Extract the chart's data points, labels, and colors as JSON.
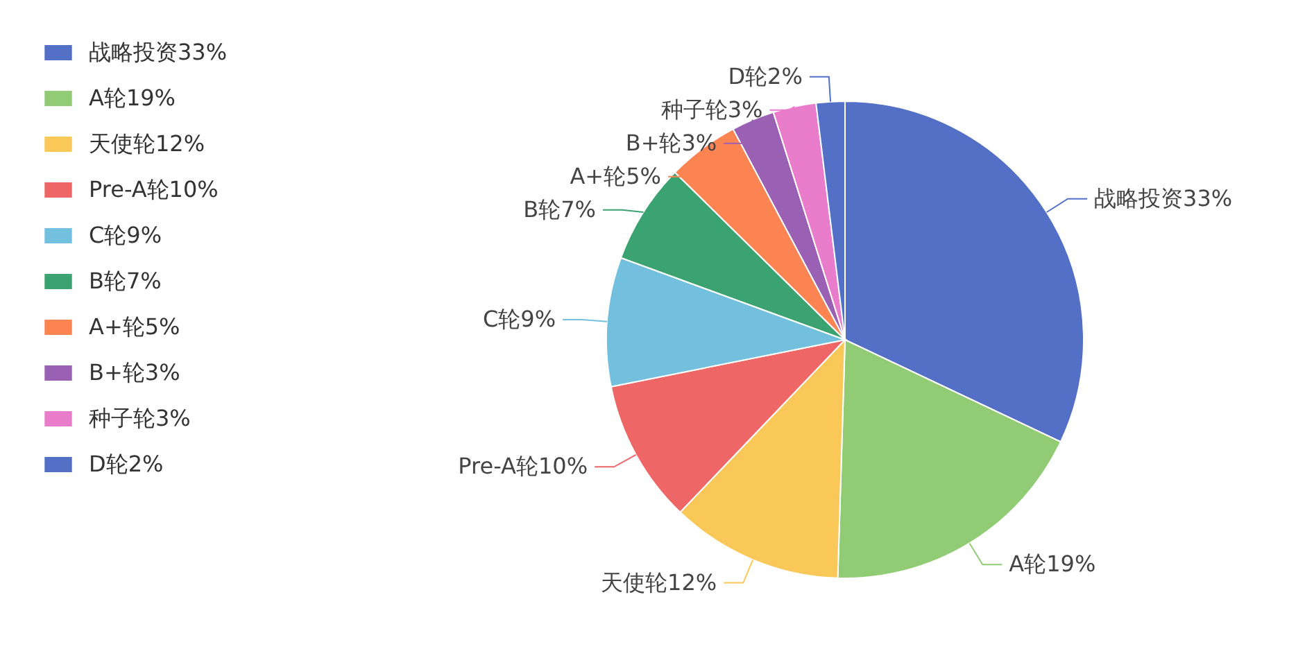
{
  "chart_data": {
    "type": "pie",
    "categories": [
      "战略投资33%",
      "A轮19%",
      "天使轮12%",
      "Pre-A轮10%",
      "C轮9%",
      "B轮7%",
      "A+轮5%",
      "B+轮3%",
      "种子轮3%",
      "D轮2%"
    ],
    "values": [
      33,
      19,
      12,
      10,
      9,
      7,
      5,
      3,
      3,
      2
    ],
    "colors": [
      "#5470c6",
      "#91cc75",
      "#fac858",
      "#ee6666",
      "#73c0de",
      "#3ba272",
      "#fc8452",
      "#9a60b4",
      "#ea7ccc",
      "#5470c6"
    ],
    "legend": "left"
  }
}
